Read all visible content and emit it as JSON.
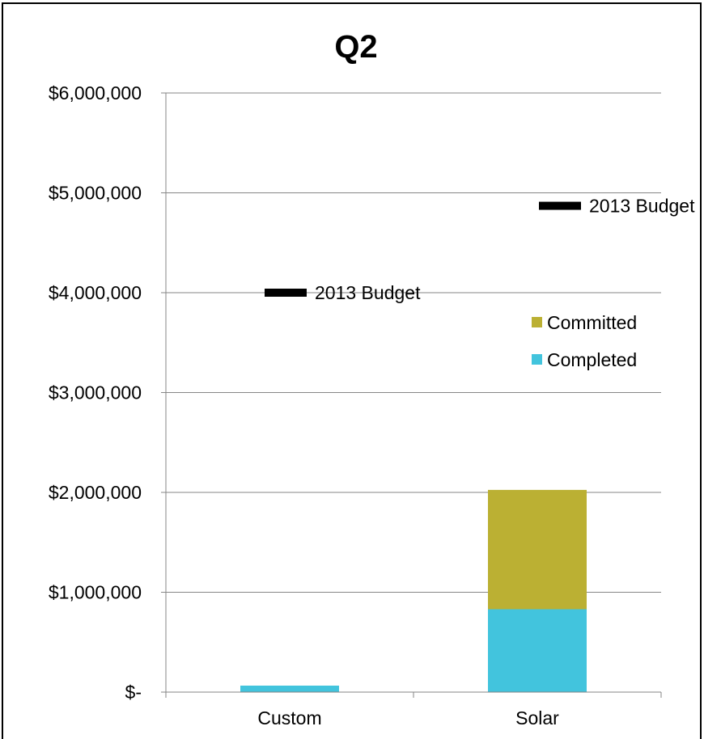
{
  "chart_data": {
    "type": "bar",
    "stacked": true,
    "title": "Q2",
    "categories": [
      "Custom",
      "Solar"
    ],
    "series": [
      {
        "name": "Completed",
        "values": [
          65000,
          830000
        ],
        "color": "#42C4DD"
      },
      {
        "name": "Committed",
        "values": [
          0,
          1195000
        ],
        "color": "#BBB033"
      }
    ],
    "markers": [
      {
        "label": "2013 Budget",
        "category": "Custom",
        "value": 4000000,
        "color": "#000000"
      },
      {
        "label": "2013 Budget",
        "category": "Solar",
        "value": 4870000,
        "color": "#000000"
      }
    ],
    "y_ticks": [
      {
        "value": 0,
        "label": "$-"
      },
      {
        "value": 1000000,
        "label": "$1,000,000"
      },
      {
        "value": 2000000,
        "label": "$2,000,000"
      },
      {
        "value": 3000000,
        "label": "$3,000,000"
      },
      {
        "value": 4000000,
        "label": "$4,000,000"
      },
      {
        "value": 5000000,
        "label": "$5,000,000"
      },
      {
        "value": 6000000,
        "label": "$6,000,000"
      }
    ],
    "ylim": [
      0,
      6000000
    ],
    "xlabel": "",
    "ylabel": "",
    "grid": true,
    "legend": "right",
    "legend_order": [
      "Committed",
      "Completed"
    ]
  }
}
